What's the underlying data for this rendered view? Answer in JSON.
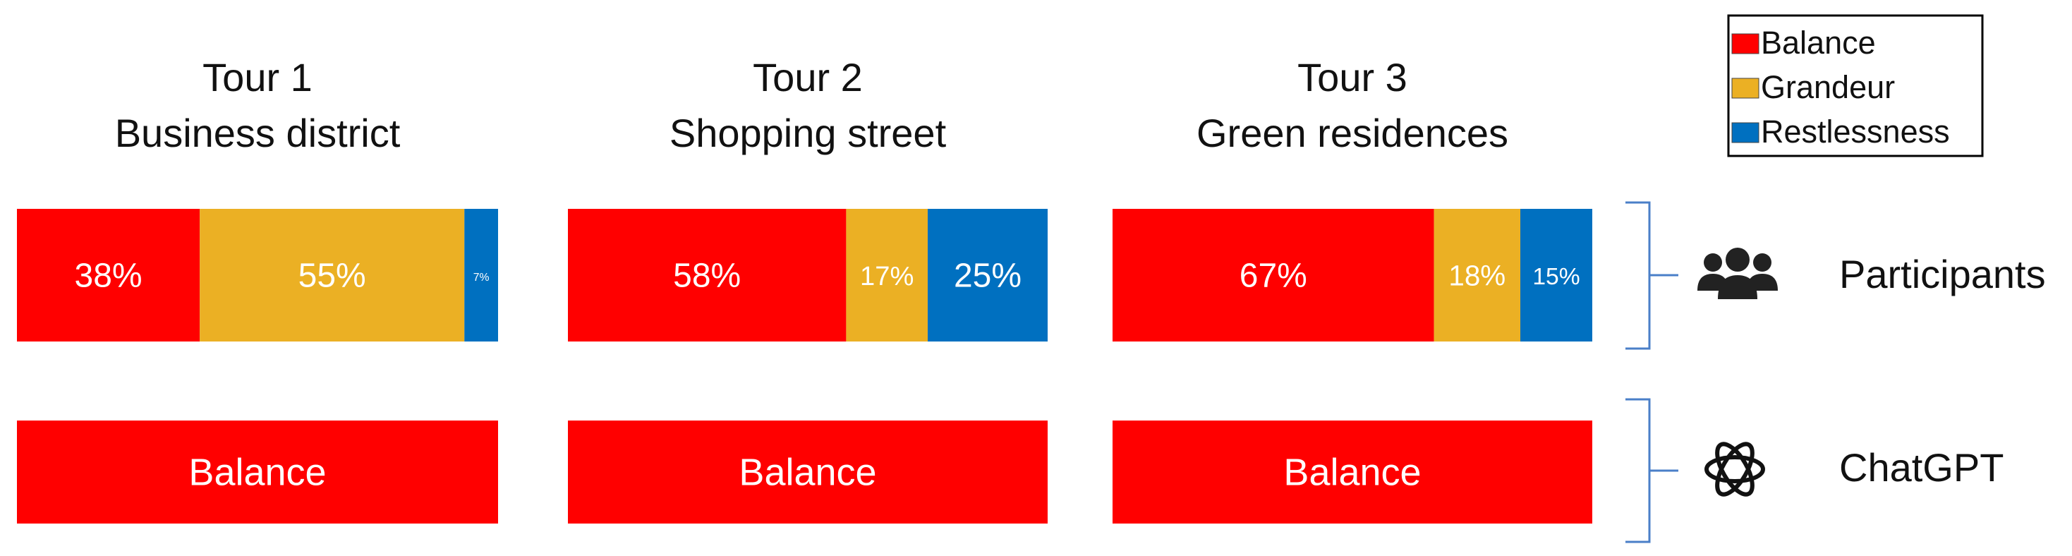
{
  "chart_data": {
    "type": "bar",
    "stacked": true,
    "orientation": "horizontal",
    "legend_position": "upper right",
    "xlim": [
      0,
      100
    ],
    "categories": [
      "Tour 1",
      "Tour 2",
      "Tour 3"
    ],
    "subtitles": [
      "Business district",
      "Shopping street",
      "Green residences"
    ],
    "row_labels": [
      "Participants",
      "ChatGPT"
    ],
    "series": [
      {
        "name": "Balance",
        "color": "#ff0000",
        "values": [
          38,
          58,
          67
        ],
        "value_labels": [
          "38%",
          "58%",
          "67%"
        ]
      },
      {
        "name": "Grandeur",
        "color": "#ebb024",
        "values": [
          55,
          17,
          18
        ],
        "value_labels": [
          "55%",
          "17%",
          "18%"
        ]
      },
      {
        "name": "Restlessness",
        "color": "#0070c0",
        "values": [
          7,
          25,
          15
        ],
        "value_labels": [
          "7%",
          "25%",
          "15%"
        ]
      }
    ],
    "chatgpt_answers": [
      "Balance",
      "Balance",
      "Balance"
    ]
  }
}
